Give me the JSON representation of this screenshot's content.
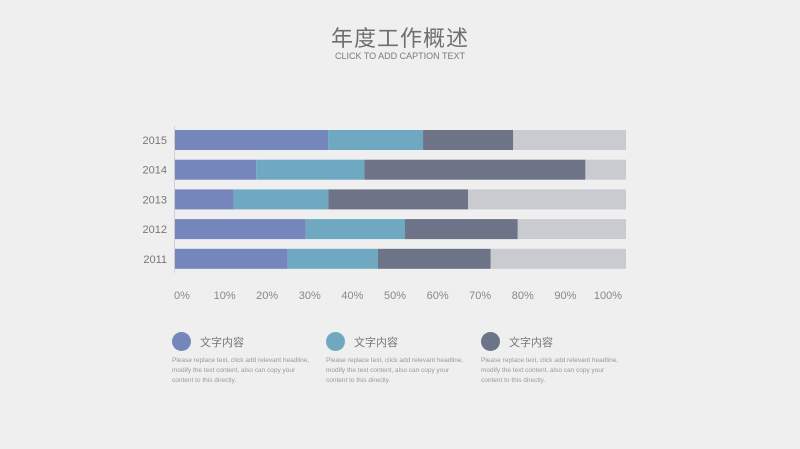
{
  "header": {
    "title": "年度工作概述",
    "subtitle": "CLICK TO ADD CAPTION TEXT"
  },
  "chart_data": {
    "type": "bar",
    "orientation": "horizontal",
    "stacked": true,
    "categories": [
      "2015",
      "2014",
      "2013",
      "2012",
      "2011"
    ],
    "series": [
      {
        "color": "#7486bb",
        "values": [
          34,
          18,
          13,
          29,
          25
        ]
      },
      {
        "color": "#6fa9c1",
        "values": [
          21,
          24,
          21,
          22,
          20
        ]
      },
      {
        "color": "#6e7488",
        "values": [
          20,
          49,
          31,
          25,
          25
        ]
      },
      {
        "color": "#c9cbd1",
        "values": [
          25,
          9,
          35,
          24,
          30
        ]
      }
    ],
    "xticks": [
      "0%",
      "10%",
      "20%",
      "30%",
      "40%",
      "50%",
      "60%",
      "70%",
      "80%",
      "90%",
      "100%"
    ],
    "xlim": [
      0,
      100
    ],
    "legend_position": "bottom",
    "grid": false
  },
  "legend": [
    {
      "label": "文字内容",
      "color": "#7486bb",
      "description": "Please replace text, click add relevant headline, modify the text content, also can copy your content to this directly."
    },
    {
      "label": "文字内容",
      "color": "#6fa9c1",
      "description": "Please replace text, click add relevant headline, modify the text content, also can copy your content to this directly."
    },
    {
      "label": "文字内容",
      "color": "#6e7488",
      "description": "Please replace text, click add relevant headline, modify the text content, also can copy your content to this directly."
    }
  ]
}
